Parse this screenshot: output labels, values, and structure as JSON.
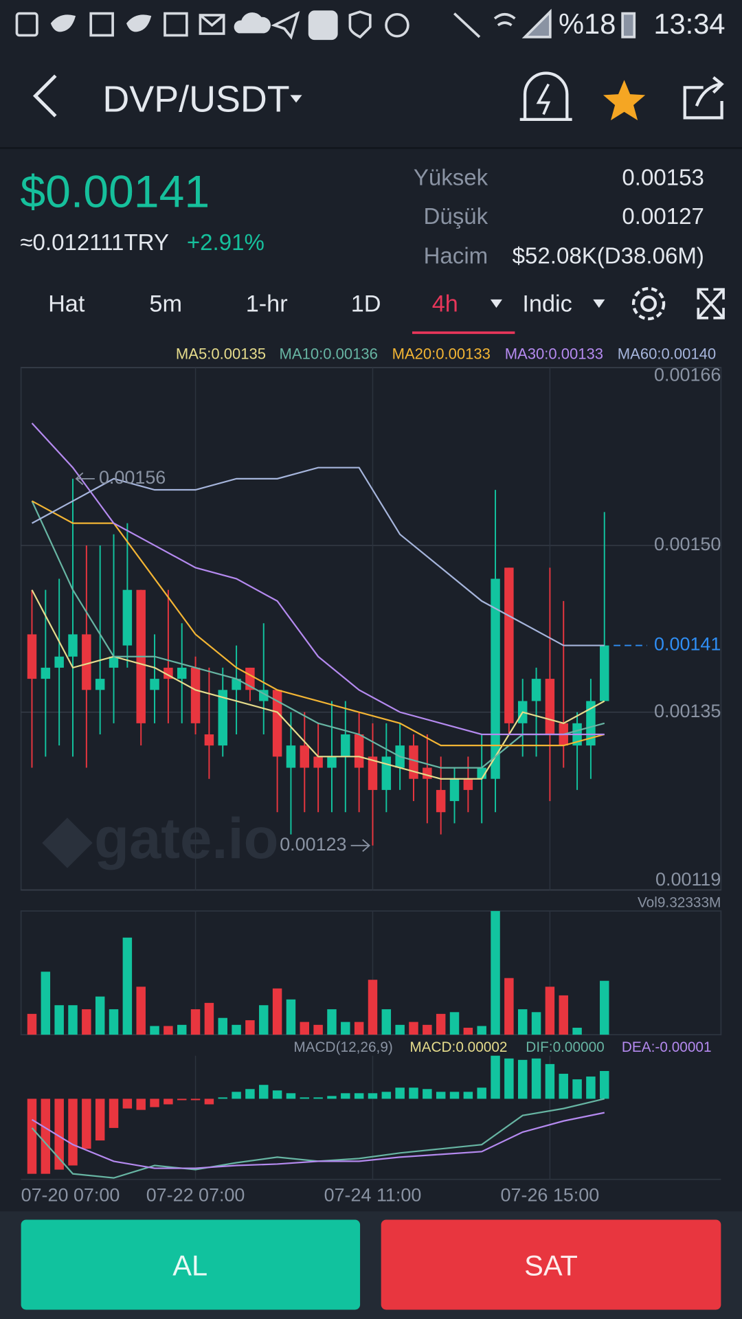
{
  "status_bar": {
    "battery": "%18",
    "time": "13:34"
  },
  "header": {
    "pair": "DVP/USDT"
  },
  "ticker": {
    "price": "$0.00141",
    "fiat": "≈0.012111TRY",
    "change": "+2.91%",
    "stats": [
      {
        "label": "Yüksek",
        "value": "0.00153"
      },
      {
        "label": "Düşük",
        "value": "0.00127"
      },
      {
        "label": "Hacim",
        "value": "$52.08K(D38.06M)"
      }
    ]
  },
  "tabs": [
    "Hat",
    "5m",
    "1-hr",
    "1D",
    "4h",
    "Indic"
  ],
  "active_tab": 4,
  "watermark": "gate.io",
  "chart_data": {
    "type": "candlestick",
    "up_color": "#12c49f",
    "down_color": "#e8363f",
    "ylim": [
      0.00119,
      0.00166
    ],
    "yticks": [
      0.00166,
      {
        "value": 0.0015,
        "label": "0.00150"
      },
      0.00135,
      0.00119
    ],
    "grid": true,
    "xlim": [
      -0.8,
      50.55
    ],
    "xticks": [
      {
        "value": -1,
        "label": "07-20 07:00"
      },
      {
        "value": 12,
        "label": "07-22 07:00"
      },
      {
        "value": 25,
        "label": "07-24 11:00"
      },
      {
        "value": 38,
        "label": "07-26 15:00"
      }
    ],
    "open": [
      0.00142,
      0.00138,
      0.00139,
      0.0014,
      0.00142,
      0.00137,
      0.00139,
      0.00141,
      0.00146,
      0.00137,
      0.00139,
      0.00138,
      0.00139,
      0.00133,
      0.00132,
      0.00137,
      0.00139,
      0.00136,
      0.00137,
      0.0013,
      0.00132,
      0.00131,
      0.0013,
      0.00131,
      0.00133,
      0.00131,
      0.00128,
      0.0013,
      0.00132,
      0.0013,
      0.00128,
      0.00127,
      0.00129,
      0.00129,
      0.00129,
      0.00148,
      0.00134,
      0.00136,
      0.00138,
      0.00134,
      0.00132,
      0.00132,
      0.00136
    ],
    "high": [
      0.00146,
      0.00146,
      0.00147,
      0.00156,
      0.0015,
      0.0015,
      0.00151,
      0.00152,
      0.00146,
      0.00142,
      0.00146,
      0.00143,
      0.0014,
      0.00139,
      0.00139,
      0.00141,
      0.00139,
      0.00143,
      0.00137,
      0.00135,
      0.00135,
      0.00134,
      0.00136,
      0.00136,
      0.00135,
      0.00134,
      0.00134,
      0.00134,
      0.00133,
      0.00133,
      0.00131,
      0.0013,
      0.00131,
      0.00133,
      0.00155,
      0.00148,
      0.00138,
      0.00139,
      0.00148,
      0.00145,
      0.00135,
      0.00138,
      0.00153
    ],
    "low": [
      0.0013,
      0.00131,
      0.00132,
      0.00131,
      0.0013,
      0.00133,
      0.00134,
      0.00139,
      0.00132,
      0.00134,
      0.00134,
      0.00134,
      0.00133,
      0.00129,
      0.00131,
      0.00133,
      0.00136,
      0.00133,
      0.00126,
      0.00124,
      0.00126,
      0.00126,
      0.00126,
      0.00126,
      0.00126,
      0.00123,
      0.00126,
      0.00128,
      0.00127,
      0.00125,
      0.00124,
      0.00125,
      0.00126,
      0.00125,
      0.00126,
      0.00133,
      0.00131,
      0.00131,
      0.00127,
      0.0013,
      0.00128,
      0.00129,
      0.00136
    ],
    "close": [
      0.00138,
      0.00139,
      0.0014,
      0.00142,
      0.00137,
      0.00138,
      0.0014,
      0.00146,
      0.00134,
      0.00138,
      0.00138,
      0.00139,
      0.00134,
      0.00132,
      0.00137,
      0.00138,
      0.00137,
      0.00137,
      0.00131,
      0.00132,
      0.0013,
      0.0013,
      0.00131,
      0.00133,
      0.0013,
      0.00128,
      0.00131,
      0.00132,
      0.00129,
      0.00129,
      0.00126,
      0.00129,
      0.00128,
      0.0013,
      0.00147,
      0.00134,
      0.00136,
      0.00138,
      0.00133,
      0.00132,
      0.00134,
      0.00136,
      0.00141
    ],
    "ma_x": [
      0,
      3,
      6,
      9,
      12,
      15,
      18,
      21,
      24,
      27,
      30,
      33,
      36,
      39,
      42
    ],
    "ma_series": [
      {
        "label": "MA5:0.00135",
        "color": "#e6dc8c",
        "values": [
          0.00146,
          0.00139,
          0.0014,
          0.00139,
          0.00137,
          0.00136,
          0.00135,
          0.00131,
          0.00131,
          0.0013,
          0.00129,
          0.00129,
          0.00135,
          0.00134,
          0.00136
        ]
      },
      {
        "label": "MA10:0.00136",
        "color": "#67b5a3",
        "values": [
          0.00154,
          0.00146,
          0.0014,
          0.0014,
          0.00139,
          0.00138,
          0.00136,
          0.00134,
          0.00133,
          0.00131,
          0.0013,
          0.0013,
          0.00133,
          0.00133,
          0.00134
        ]
      },
      {
        "label": "MA20:0.00133",
        "color": "#f3b534",
        "values": [
          0.00154,
          0.00152,
          0.00152,
          0.00147,
          0.00142,
          0.00139,
          0.00137,
          0.00136,
          0.00135,
          0.00134,
          0.00132,
          0.00132,
          0.00132,
          0.00132,
          0.00133
        ]
      },
      {
        "label": "MA30:0.00133",
        "color": "#b58af0",
        "values": [
          0.00161,
          0.00157,
          0.00152,
          0.0015,
          0.00148,
          0.00147,
          0.00145,
          0.0014,
          0.00137,
          0.00135,
          0.00134,
          0.00133,
          0.00133,
          0.00133,
          0.00133
        ]
      },
      {
        "label": "MA60:0.00140",
        "color": "#a6b5dc",
        "values": [
          0.00152,
          0.00154,
          0.00156,
          0.00155,
          0.00155,
          0.00156,
          0.00156,
          0.00157,
          0.00157,
          0.00151,
          0.00148,
          0.00145,
          0.00143,
          0.00141,
          0.00141
        ]
      }
    ],
    "last_price_color": "#2f8ef4",
    "volume_label": "Vol9.32333M",
    "volume_ylim": [
      0,
      21.4
    ],
    "volume": [
      3.6,
      10.9,
      5.1,
      5.1,
      4.4,
      6.6,
      4.4,
      16.8,
      8.3,
      1.5,
      1.5,
      1.7,
      4.4,
      5.5,
      2.9,
      1.7,
      2.5,
      5.1,
      8.0,
      6.1,
      2.2,
      1.7,
      4.4,
      2.2,
      2.2,
      9.5,
      4.4,
      1.7,
      2.2,
      1.7,
      3.6,
      3.9,
      1.2,
      1.5,
      21.4,
      9.8,
      4.4,
      3.9,
      8.3,
      6.8,
      1.2,
      0,
      9.32333
    ],
    "macd_legend": {
      "name": "MACD(12,26,9)",
      "macd": "MACD:0.00002",
      "dif": "DIF:0.00000",
      "dea": "DEA:-0.00001"
    },
    "macd_ylim": [
      -5.8e-05,
      3.1e-05
    ],
    "macd": [
      -5.4e-05,
      -5.4e-05,
      -5.1e-05,
      -4.8e-05,
      -3.6e-05,
      -3e-05,
      -2.1e-05,
      -7e-06,
      -8e-06,
      -6e-06,
      -4e-06,
      -1e-06,
      -1e-06,
      -4e-06,
      1e-06,
      5e-06,
      7e-06,
      1e-05,
      6e-06,
      4e-06,
      1e-06,
      1e-06,
      2e-06,
      4e-06,
      4e-06,
      4e-06,
      5e-06,
      8e-06,
      8e-06,
      7e-06,
      5e-06,
      5e-06,
      5e-06,
      8e-06,
      3.1e-05,
      2.9e-05,
      2.8e-05,
      2.9e-05,
      2.5e-05,
      1.8e-05,
      1.4e-05,
      1.6e-05,
      2e-05
    ],
    "dif_color": "#67b5a3",
    "dea_color": "#b58af0",
    "macd_color": "#e6dc8c",
    "dif": [
      -2.1e-05,
      -5.4e-05,
      -5.7e-05,
      -4.8e-05,
      -5.1e-05,
      -4.6e-05,
      -4.2e-05,
      -4.5e-05,
      -4.3e-05,
      -3.9e-05,
      -3.6e-05,
      -3.3e-05,
      -1.2e-05,
      -7e-06,
      0
    ],
    "dea": [
      -1.5e-05,
      -3.3e-05,
      -4.5e-05,
      -5e-05,
      -5e-05,
      -4.8e-05,
      -4.7e-05,
      -4.5e-05,
      -4.5e-05,
      -4.2e-05,
      -4e-05,
      -3.8e-05,
      -2.4e-05,
      -1.6e-05,
      -1e-05
    ]
  },
  "buttons": {
    "buy": "AL",
    "sell": "SAT"
  }
}
